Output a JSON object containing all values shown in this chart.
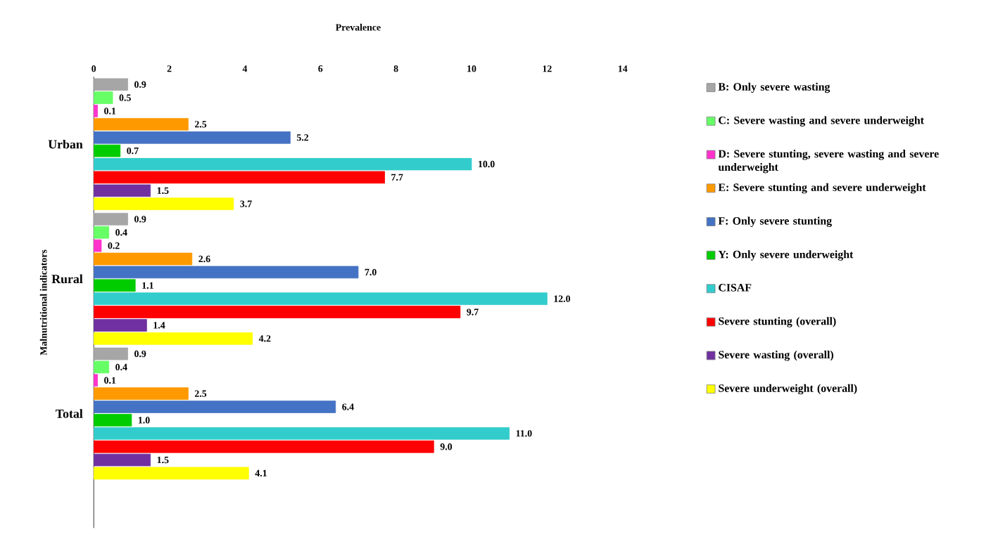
{
  "chart_data": {
    "type": "bar",
    "orientation": "horizontal",
    "xlabel": "Prevalence",
    "ylabel": "Malnutritional indicators",
    "categories": [
      "Urban",
      "Rural",
      "Total"
    ],
    "xlim": [
      0,
      14
    ],
    "xticks": [
      0,
      2,
      4,
      6,
      8,
      10,
      12,
      14
    ],
    "legend": "right",
    "series": [
      {
        "name": "B: Only severe wasting",
        "color": "#a6a6a6",
        "values": [
          0.9,
          0.9,
          0.9
        ],
        "value_labels": [
          "0.9",
          "0.9",
          "0.9"
        ]
      },
      {
        "name": "C: Severe wasting and severe underweight",
        "color": "#66ff66",
        "values": [
          0.5,
          0.4,
          0.4
        ],
        "value_labels": [
          "0.5",
          "0.4",
          "0.4"
        ]
      },
      {
        "name": "D: Severe stunting, severe wasting and severe underweight",
        "color": "#ff33cc",
        "values": [
          0.1,
          0.2,
          0.1
        ],
        "value_labels": [
          "0.1",
          "0.2",
          "0.1"
        ]
      },
      {
        "name": "E: Severe stunting and severe underweight",
        "color": "#ff9900",
        "values": [
          2.5,
          2.6,
          2.5
        ],
        "value_labels": [
          "2.5",
          "2.6",
          "2.5"
        ]
      },
      {
        "name": "F: Only severe stunting",
        "color": "#4472c4",
        "values": [
          5.2,
          7.0,
          6.4
        ],
        "value_labels": [
          "5.2",
          "7.0",
          "6.4"
        ]
      },
      {
        "name": "Y: Only severe underweight",
        "color": "#00cc00",
        "values": [
          0.7,
          1.1,
          1.0
        ],
        "value_labels": [
          "0.7",
          "1.1",
          "1.0"
        ]
      },
      {
        "name": "CISAF",
        "color": "#33cccc",
        "values": [
          10.0,
          12.0,
          11.0
        ],
        "value_labels": [
          "10.0",
          "12.0",
          "11.0"
        ]
      },
      {
        "name": "Severe stunting (overall)",
        "color": "#ff0000",
        "values": [
          7.7,
          9.7,
          9.0
        ],
        "value_labels": [
          "7.7",
          "9.7",
          "9.0"
        ]
      },
      {
        "name": "Severe wasting (overall)",
        "color": "#7030a0",
        "values": [
          1.5,
          1.4,
          1.5
        ],
        "value_labels": [
          "1.5",
          "1.4",
          "1.5"
        ]
      },
      {
        "name": "Severe underweight (overall)",
        "color": "#ffff00",
        "values": [
          3.7,
          4.2,
          4.1
        ],
        "value_labels": [
          "3.7",
          "4.2",
          "4.1"
        ]
      }
    ]
  }
}
